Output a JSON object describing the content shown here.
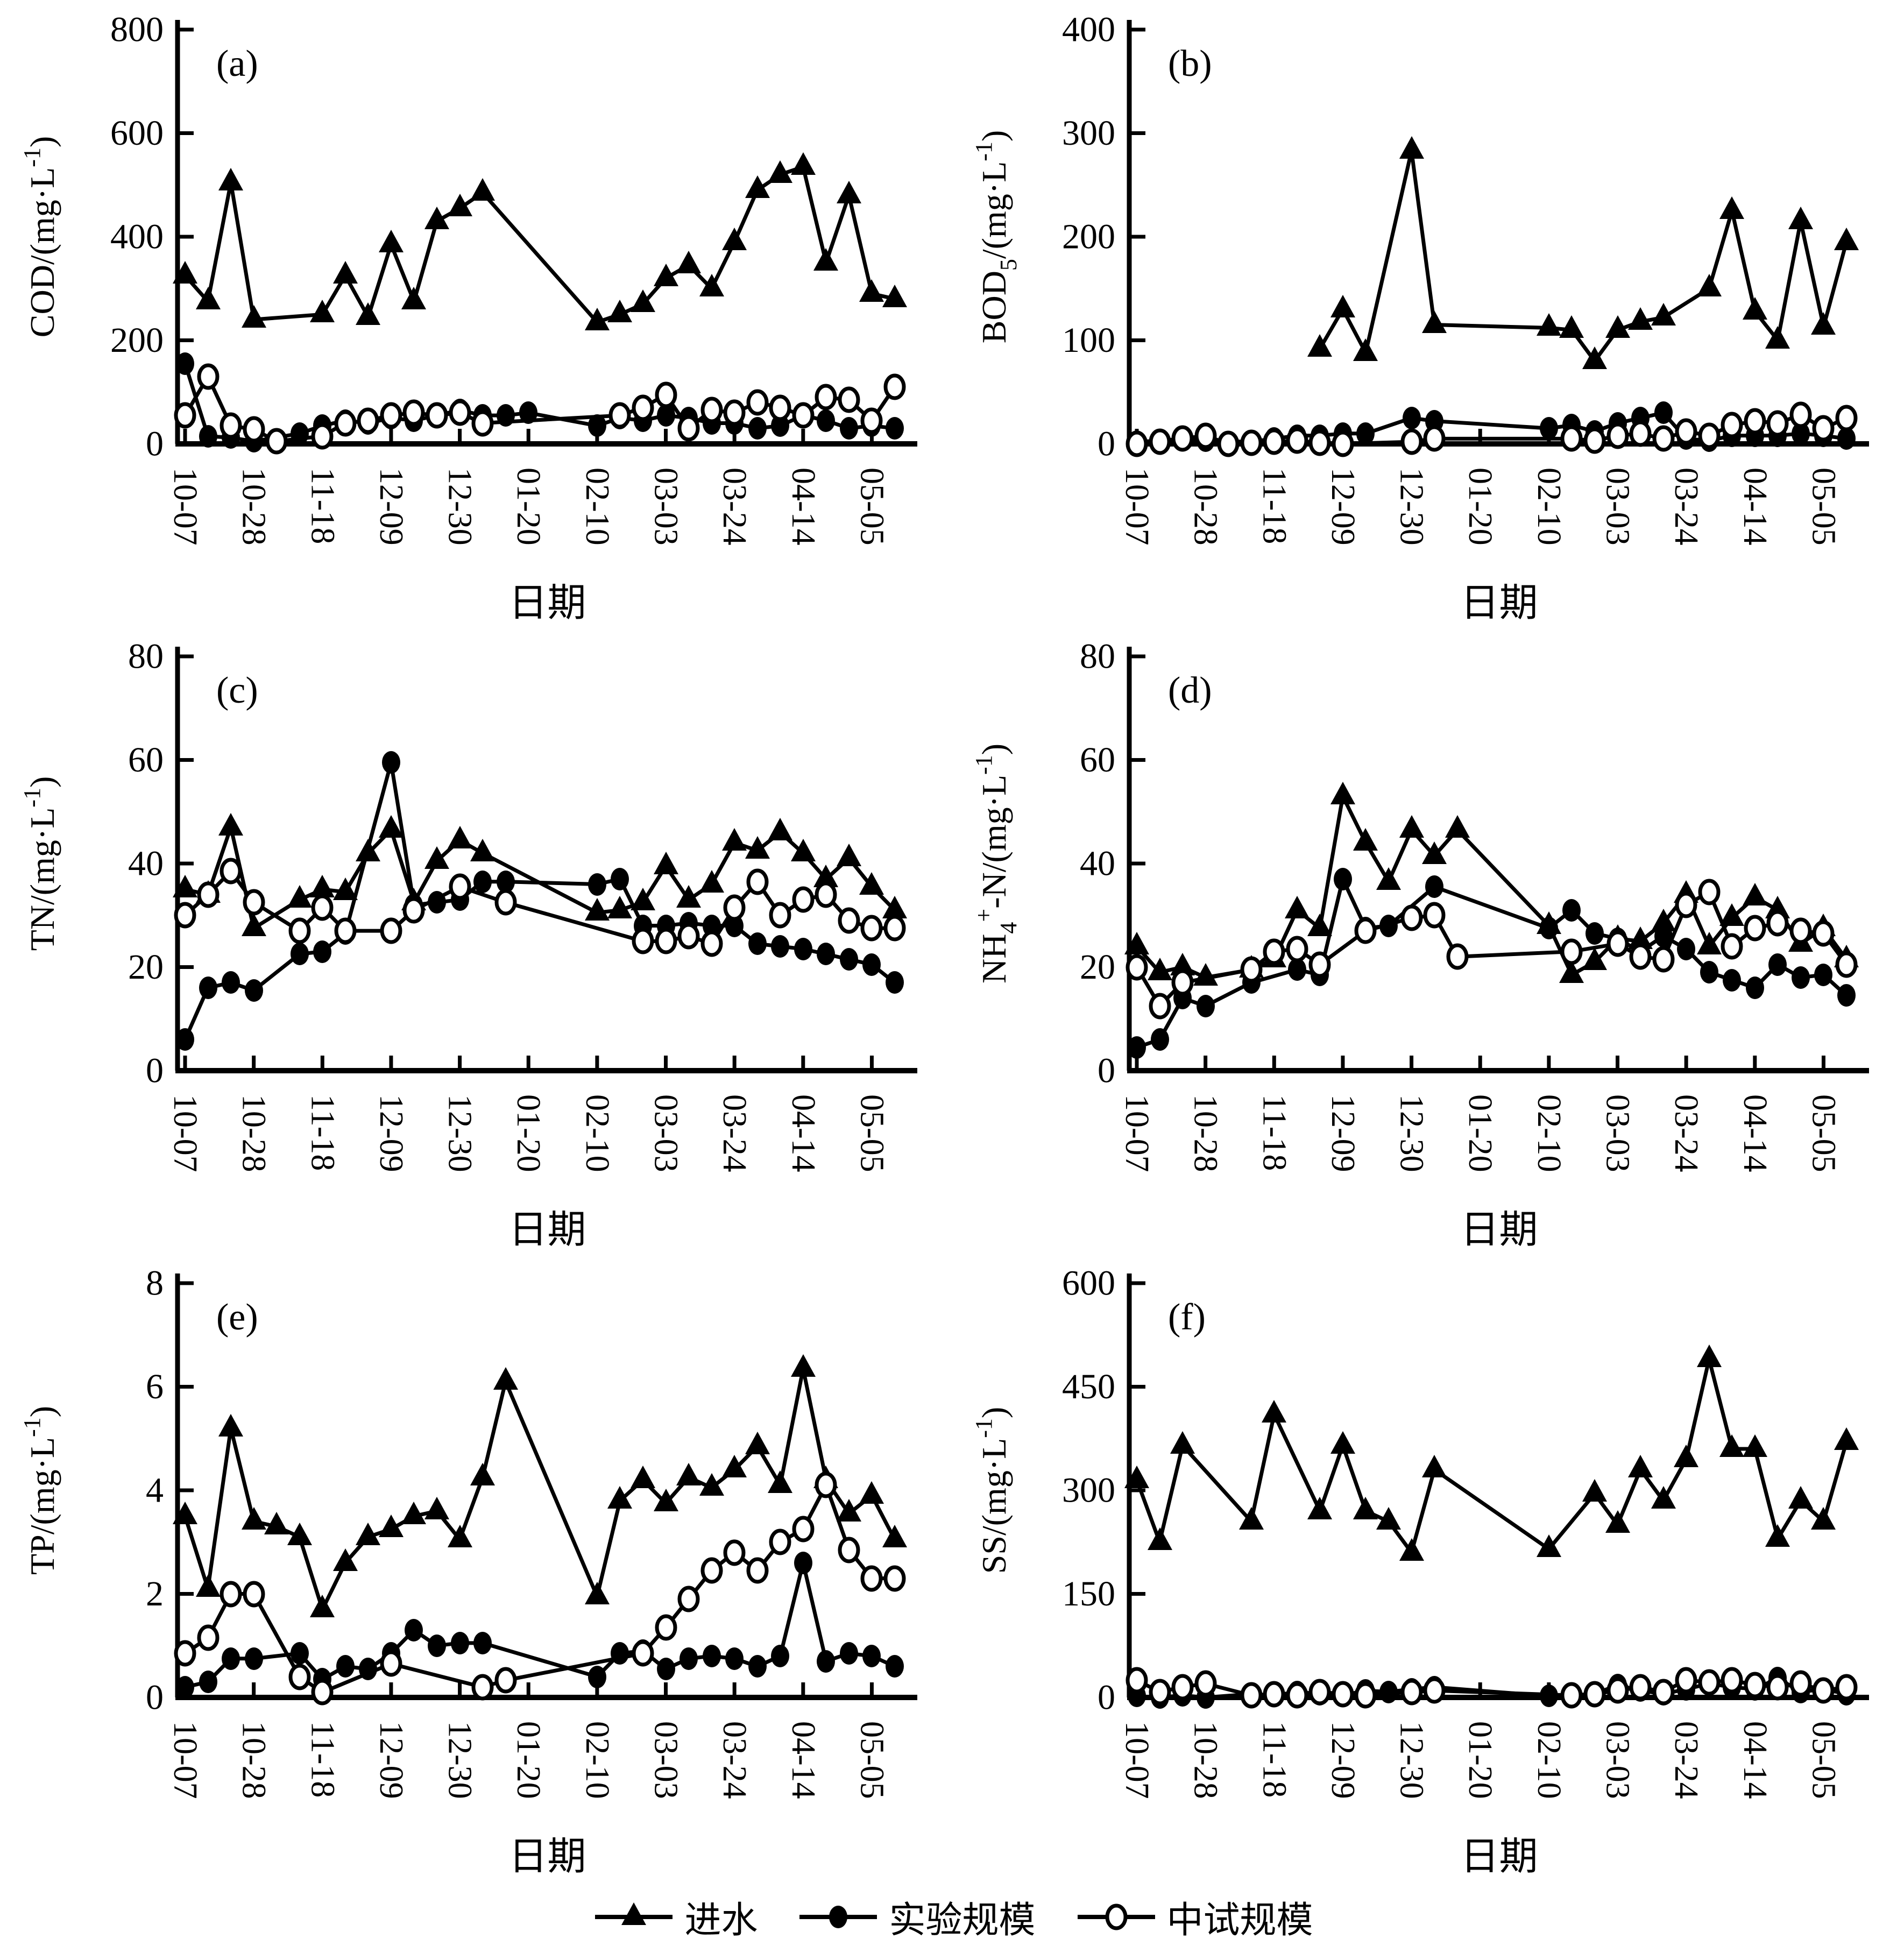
{
  "colors": {
    "ink": "#000000",
    "background": "#ffffff"
  },
  "x_axis": {
    "label": "日期",
    "dates": [
      "10-07",
      "10-14",
      "10-21",
      "10-28",
      "11-04",
      "11-11",
      "11-18",
      "11-25",
      "12-02",
      "12-09",
      "12-16",
      "12-23",
      "12-30",
      "01-06",
      "01-13",
      "01-20",
      "01-27",
      "02-03",
      "02-10",
      "02-17",
      "02-24",
      "03-03",
      "03-10",
      "03-17",
      "03-24",
      "03-31",
      "04-07",
      "04-14",
      "04-21",
      "04-28",
      "05-05",
      "05-12"
    ],
    "tick_indices": [
      0,
      3,
      6,
      9,
      12,
      15,
      18,
      21,
      24,
      27,
      30
    ]
  },
  "legend": {
    "items": [
      {
        "label": "进水",
        "marker": "triangle-filled"
      },
      {
        "label": "实验规模",
        "marker": "circle-filled"
      },
      {
        "label": "中试规模",
        "marker": "circle-open"
      }
    ]
  },
  "chart_data": [
    {
      "type": "line",
      "letter": "(a)",
      "ylabel_text": "COD/(mg·L-1)",
      "ylabel_segments": [
        {
          "t": "COD/(mg·L"
        },
        {
          "t": "-1",
          "pos": "sup"
        },
        {
          "t": ")"
        }
      ],
      "ylim": [
        0,
        800
      ],
      "yticks": [
        0,
        200,
        400,
        600,
        800
      ],
      "series": [
        {
          "name": "进水",
          "marker": "triangle-filled",
          "values": [
            325,
            275,
            505,
            240,
            null,
            null,
            250,
            325,
            245,
            385,
            275,
            430,
            455,
            485,
            null,
            null,
            null,
            null,
            235,
            250,
            270,
            320,
            345,
            300,
            390,
            490,
            520,
            535,
            350,
            480,
            290,
            280
          ]
        },
        {
          "name": "实验规模",
          "marker": "circle-filled",
          "values": [
            155,
            15,
            12,
            5,
            null,
            20,
            35,
            45,
            40,
            50,
            45,
            55,
            65,
            55,
            55,
            60,
            null,
            null,
            35,
            50,
            45,
            55,
            50,
            40,
            40,
            30,
            35,
            55,
            45,
            30,
            35,
            30
          ]
        },
        {
          "name": "中试规模",
          "marker": "circle-open",
          "values": [
            55,
            130,
            35,
            28,
            5,
            null,
            15,
            40,
            45,
            55,
            60,
            55,
            60,
            40,
            null,
            null,
            null,
            null,
            null,
            55,
            70,
            95,
            30,
            65,
            60,
            80,
            70,
            55,
            90,
            85,
            45,
            110
          ]
        }
      ]
    },
    {
      "type": "line",
      "letter": "(b)",
      "ylabel_text": "BOD5/(mg·L-1)",
      "ylabel_segments": [
        {
          "t": "BOD"
        },
        {
          "t": "5",
          "pos": "sub"
        },
        {
          "t": "/(mg·L"
        },
        {
          "t": "-1",
          "pos": "sup"
        },
        {
          "t": ")"
        }
      ],
      "ylim": [
        0,
        400
      ],
      "yticks": [
        0,
        100,
        200,
        300,
        400
      ],
      "series": [
        {
          "name": "进水",
          "marker": "triangle-filled",
          "values": [
            null,
            null,
            null,
            null,
            null,
            null,
            null,
            null,
            92,
            130,
            88,
            null,
            283,
            115,
            null,
            null,
            null,
            null,
            112,
            110,
            80,
            110,
            118,
            122,
            null,
            150,
            225,
            128,
            100,
            215,
            113,
            195
          ]
        },
        {
          "name": "实验规模",
          "marker": "circle-filled",
          "values": [
            2,
            3,
            5,
            3,
            null,
            2,
            5,
            8,
            8,
            10,
            10,
            null,
            25,
            22,
            null,
            null,
            null,
            null,
            15,
            18,
            12,
            20,
            25,
            30,
            5,
            3,
            8,
            8,
            8,
            10,
            8,
            5
          ]
        },
        {
          "name": "中试规模",
          "marker": "circle-open",
          "values": [
            0,
            2,
            5,
            8,
            0,
            1,
            2,
            3,
            1,
            0,
            null,
            null,
            2,
            5,
            null,
            null,
            null,
            null,
            null,
            5,
            3,
            8,
            10,
            5,
            12,
            8,
            18,
            22,
            20,
            28,
            15,
            25
          ]
        }
      ]
    },
    {
      "type": "line",
      "letter": "(c)",
      "ylabel_text": "TN/(mg·L-1)",
      "ylabel_segments": [
        {
          "t": "TN/(mg·L"
        },
        {
          "t": "-1",
          "pos": "sup"
        },
        {
          "t": ")"
        }
      ],
      "ylim": [
        0,
        80
      ],
      "yticks": [
        0,
        20,
        40,
        60,
        80
      ],
      "series": [
        {
          "name": "进水",
          "marker": "triangle-filled",
          "values": [
            35,
            34,
            47,
            27.5,
            null,
            33,
            35,
            34.5,
            42,
            46.5,
            32.5,
            40.5,
            44.5,
            42,
            null,
            null,
            null,
            null,
            30.5,
            31,
            32.5,
            39.5,
            33,
            36,
            44,
            42.5,
            46,
            42,
            37,
            41,
            35.5,
            31
          ]
        },
        {
          "name": "实验规模",
          "marker": "circle-filled",
          "values": [
            6,
            16,
            17,
            15.5,
            null,
            22.5,
            23,
            26.5,
            null,
            59.5,
            32,
            32.5,
            33,
            36.5,
            36.5,
            null,
            null,
            null,
            36,
            37,
            28,
            28,
            28.5,
            28,
            28,
            24.5,
            24,
            23.5,
            22.5,
            21.5,
            20.5,
            17
          ]
        },
        {
          "name": "中试规模",
          "marker": "circle-open",
          "values": [
            30,
            34,
            38.5,
            32.5,
            null,
            27,
            31.5,
            27,
            null,
            27,
            31,
            null,
            35.5,
            null,
            32.5,
            null,
            null,
            null,
            null,
            null,
            25,
            25,
            26,
            24.5,
            31.5,
            36.5,
            30,
            33,
            34,
            29,
            27.5,
            27.5
          ]
        }
      ]
    },
    {
      "type": "line",
      "letter": "(d)",
      "ylabel_text": "NH4+-N/(mg·L-1)",
      "ylabel_segments": [
        {
          "t": "NH"
        },
        {
          "t": "4",
          "pos": "sub"
        },
        {
          "t": "+",
          "pos": "sup"
        },
        {
          "t": "-N/(mg·L"
        },
        {
          "t": "-1",
          "pos": "sup"
        },
        {
          "t": ")"
        }
      ],
      "ylim": [
        0,
        80
      ],
      "yticks": [
        0,
        20,
        40,
        60,
        80
      ],
      "series": [
        {
          "name": "进水",
          "marker": "triangle-filled",
          "values": [
            24,
            19,
            20,
            18,
            null,
            19.5,
            21.5,
            31,
            27.5,
            53,
            44,
            36.5,
            46.5,
            41.5,
            46.5,
            null,
            null,
            null,
            28,
            18.5,
            21,
            25.5,
            25,
            28.5,
            34,
            24,
            29.5,
            33.5,
            31,
            24.5,
            27.5,
            21.5
          ]
        },
        {
          "name": "实验规模",
          "marker": "circle-filled",
          "values": [
            4.5,
            6,
            14,
            12.5,
            null,
            17,
            null,
            19.5,
            18.5,
            37,
            27.5,
            28,
            null,
            35.5,
            null,
            null,
            null,
            null,
            27.5,
            31,
            26.5,
            25.5,
            23,
            26,
            23.5,
            19,
            17.5,
            16,
            20.5,
            18,
            18.5,
            14.5
          ]
        },
        {
          "name": "中试规模",
          "marker": "circle-open",
          "values": [
            20,
            12.5,
            17,
            null,
            null,
            19.5,
            23,
            23.5,
            20.5,
            null,
            27,
            null,
            29.5,
            30,
            22,
            null,
            null,
            null,
            null,
            23,
            null,
            24.5,
            22,
            21.5,
            32,
            34.5,
            24,
            27.5,
            28.5,
            27,
            26.5,
            20.5
          ]
        }
      ]
    },
    {
      "type": "line",
      "letter": "(e)",
      "ylabel_text": "TP/(mg·L-1)",
      "ylabel_segments": [
        {
          "t": "TP/(mg·L"
        },
        {
          "t": "-1",
          "pos": "sup"
        },
        {
          "t": ")"
        }
      ],
      "ylim": [
        0,
        8
      ],
      "yticks": [
        0,
        2,
        4,
        6,
        8
      ],
      "series": [
        {
          "name": "进水",
          "marker": "triangle-filled",
          "values": [
            3.5,
            2.1,
            5.2,
            3.4,
            3.3,
            3.1,
            1.7,
            2.6,
            3.1,
            3.25,
            3.5,
            3.6,
            3.05,
            4.25,
            6.1,
            null,
            null,
            null,
            1.95,
            3.8,
            4.2,
            3.75,
            4.25,
            4.05,
            4.4,
            4.85,
            4.1,
            6.35,
            4.2,
            3.55,
            3.9,
            3.05
          ]
        },
        {
          "name": "实验规模",
          "marker": "circle-filled",
          "values": [
            0.2,
            0.3,
            0.75,
            0.75,
            null,
            0.85,
            0.35,
            0.6,
            0.55,
            0.85,
            1.3,
            1.0,
            1.05,
            1.05,
            null,
            null,
            null,
            null,
            0.4,
            0.85,
            0.9,
            0.55,
            0.75,
            0.8,
            0.75,
            0.6,
            0.8,
            2.6,
            0.7,
            0.85,
            0.8,
            0.6
          ]
        },
        {
          "name": "中试规模",
          "marker": "circle-open",
          "values": [
            0.85,
            1.15,
            2.0,
            2.0,
            null,
            0.4,
            0.1,
            null,
            null,
            0.65,
            null,
            null,
            null,
            0.2,
            0.33,
            null,
            null,
            null,
            null,
            null,
            0.85,
            1.35,
            1.9,
            2.45,
            2.8,
            2.45,
            3.0,
            3.25,
            4.1,
            2.85,
            2.3,
            2.3
          ]
        }
      ]
    },
    {
      "type": "line",
      "letter": "(f)",
      "ylabel_text": "SS/(mg·L-1)",
      "ylabel_segments": [
        {
          "t": "SS/(mg·L"
        },
        {
          "t": "-1",
          "pos": "sup"
        },
        {
          "t": ")"
        }
      ],
      "ylim": [
        0,
        600
      ],
      "yticks": [
        0,
        150,
        300,
        450,
        600
      ],
      "series": [
        {
          "name": "进水",
          "marker": "triangle-filled",
          "values": [
            315,
            225,
            365,
            null,
            null,
            255,
            410,
            null,
            270,
            365,
            270,
            255,
            210,
            330,
            null,
            null,
            null,
            null,
            215,
            null,
            295,
            250,
            330,
            285,
            345,
            490,
            360,
            360,
            230,
            285,
            255,
            370
          ]
        },
        {
          "name": "实验规模",
          "marker": "circle-filled",
          "values": [
            2,
            0,
            3,
            0,
            null,
            5,
            3,
            8,
            5,
            3,
            10,
            8,
            12,
            15,
            null,
            null,
            null,
            null,
            2,
            null,
            5,
            18,
            10,
            5,
            12,
            20,
            15,
            12,
            28,
            8,
            12,
            5
          ]
        },
        {
          "name": "中试规模",
          "marker": "circle-open",
          "values": [
            25,
            8,
            15,
            20,
            null,
            3,
            5,
            3,
            8,
            5,
            3,
            null,
            8,
            10,
            null,
            null,
            null,
            null,
            null,
            3,
            5,
            10,
            15,
            8,
            25,
            22,
            25,
            18,
            15,
            20,
            10,
            15
          ]
        }
      ]
    }
  ]
}
